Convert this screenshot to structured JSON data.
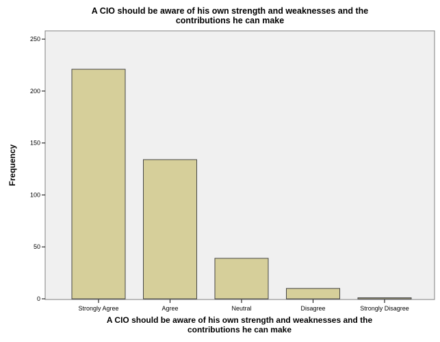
{
  "chart_data": {
    "type": "bar",
    "title_lines": [
      "A CIO should be aware of his own strength and weaknesses and the",
      "contributions he can make"
    ],
    "xlabel_lines": [
      "A CIO should be aware of his own strength and weaknesses and the",
      "contributions he can make"
    ],
    "ylabel": "Frequency",
    "categories": [
      "Strongly Agree",
      "Agree",
      "Neutral",
      "Disagree",
      "Strongly Disagree"
    ],
    "values": [
      221,
      134,
      39,
      10,
      1
    ],
    "ylim": [
      0,
      256
    ],
    "yticks": [
      0,
      50,
      100,
      150,
      200,
      250
    ],
    "grid": false,
    "colors": {
      "plot_background": "#f0f0f0",
      "bar_fill": "#d6cf9a",
      "bar_stroke": "#444444",
      "frame": "#808080"
    }
  }
}
